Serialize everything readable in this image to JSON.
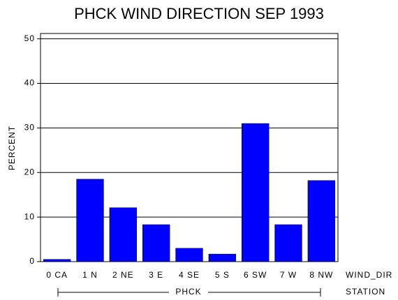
{
  "chart_data": {
    "type": "bar",
    "title": "PHCK WIND DIRECTION SEP 1993",
    "y_label": "PERCENT",
    "x_label": "WIND_DIR",
    "group_label": "PHCK",
    "group_axis_label": "STATION",
    "categories": [
      "0 CA",
      "1 N",
      "2 NE",
      "3 E",
      "4 SE",
      "5 S",
      "6 SW",
      "7 W",
      "8 NW"
    ],
    "values": [
      0.5,
      18.5,
      12.1,
      8.3,
      3.0,
      1.7,
      31.0,
      8.3,
      18.2
    ],
    "color": "#0000ff",
    "ylim": [
      0,
      51.2
    ],
    "yticks": [
      0,
      10,
      20,
      30,
      40,
      50
    ],
    "grid": true
  }
}
